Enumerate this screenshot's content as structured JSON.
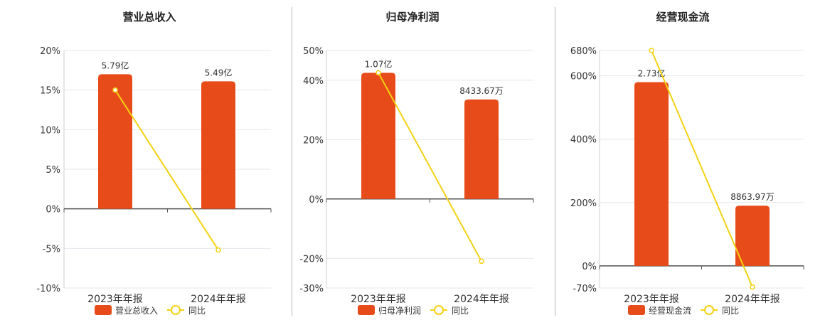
{
  "colors": {
    "bar": "#e84b1a",
    "line": "#f3d212",
    "grid": "#e6e6ee",
    "axis": "#555555",
    "text": "#333333",
    "title": "#222222"
  },
  "legend": {
    "bar_icon": "bar-swatch",
    "line_icon": "line-circle-marker",
    "line_label": "同比"
  },
  "chart_data": [
    {
      "type": "bar",
      "title": "营业总收入",
      "categories": [
        "2023年年报",
        "2024年年报"
      ],
      "yticks": [
        "20%",
        "15%",
        "10%",
        "5%",
        "0%",
        "-5%",
        "-10%"
      ],
      "ylim": [
        -10,
        20
      ],
      "ytick_values": [
        20,
        15,
        10,
        5,
        0,
        -5,
        -10
      ],
      "series": [
        {
          "name": "营业总收入",
          "type": "bar",
          "values": [
            5.79,
            5.49
          ],
          "unit": "亿",
          "labels": [
            "5.79亿",
            "5.49亿"
          ],
          "axis_values": [
            17,
            16.1
          ]
        },
        {
          "name": "同比",
          "type": "line",
          "values": [
            15,
            -5.2
          ]
        }
      ],
      "grid": true,
      "legend_position": "bottom"
    },
    {
      "type": "bar",
      "title": "归母净利润",
      "categories": [
        "2023年年报",
        "2024年年报"
      ],
      "yticks": [
        "50%",
        "40%",
        "20%",
        "0%",
        "-20%",
        "-30%"
      ],
      "ylim": [
        -30,
        50
      ],
      "ytick_values": [
        50,
        40,
        20,
        0,
        -20,
        -30
      ],
      "series": [
        {
          "name": "归母净利润",
          "type": "bar",
          "values": [
            1.07,
            0.843367
          ],
          "unit": "亿",
          "labels": [
            "1.07亿",
            "8433.67万"
          ],
          "axis_values": [
            42.5,
            33.5
          ]
        },
        {
          "name": "同比",
          "type": "line",
          "values": [
            42.5,
            -21
          ]
        }
      ],
      "grid": true,
      "legend_position": "bottom"
    },
    {
      "type": "bar",
      "title": "经营现金流",
      "categories": [
        "2023年年报",
        "2024年年报"
      ],
      "yticks": [
        "680%",
        "600%",
        "400%",
        "200%",
        "0%",
        "-70%"
      ],
      "ylim": [
        -70,
        680
      ],
      "ytick_values": [
        680,
        600,
        400,
        200,
        0,
        -70
      ],
      "series": [
        {
          "name": "经营现金流",
          "type": "bar",
          "values": [
            2.73,
            0.886397
          ],
          "unit": "亿",
          "labels": [
            "2.73亿",
            "8863.97万"
          ],
          "axis_values": [
            580,
            190
          ]
        },
        {
          "name": "同比",
          "type": "line",
          "values": [
            680,
            -67
          ]
        }
      ],
      "grid": true,
      "legend_position": "bottom"
    }
  ]
}
